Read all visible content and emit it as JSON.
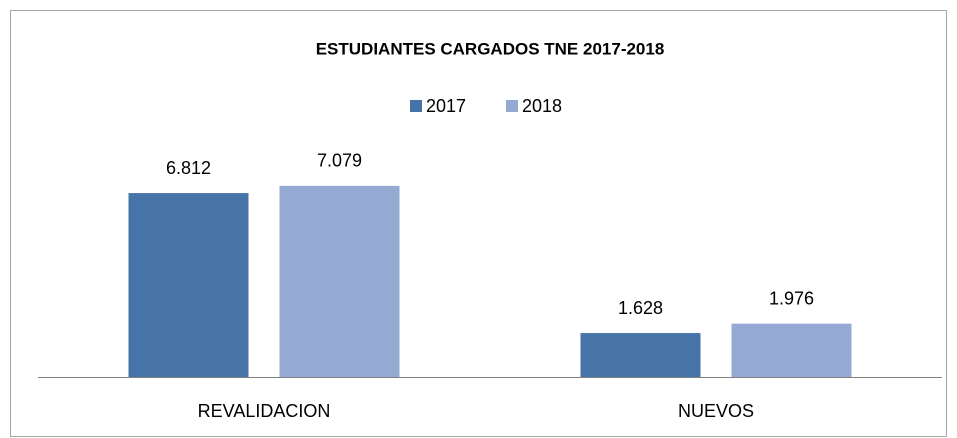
{
  "chart_data": {
    "type": "bar",
    "title": "ESTUDIANTES CARGADOS TNE 2017-2018",
    "categories": [
      "REVALIDACION",
      "NUEVOS"
    ],
    "series": [
      {
        "name": "2017",
        "color": "#4674a8",
        "values": [
          6812,
          1628
        ],
        "value_labels": [
          "6.812",
          "1.628"
        ]
      },
      {
        "name": "2018",
        "color": "#95aad3",
        "values": [
          7079,
          1976
        ],
        "value_labels": [
          "7.079",
          "1.976"
        ]
      }
    ],
    "legend": "top"
  }
}
